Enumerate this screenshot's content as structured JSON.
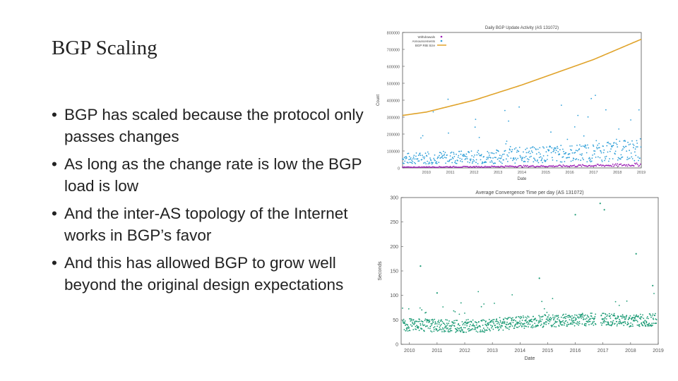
{
  "slide": {
    "title": "BGP Scaling",
    "bullets": [
      "BGP has scaled because the protocol only passes changes",
      "As long as the change rate is low the BGP load is low",
      "And the inter-AS topology of the Internet works in BGP’s favor",
      "And this has allowed BGP to grow well beyond the original  design expectations"
    ]
  },
  "chart_data": [
    {
      "type": "scatter",
      "title": "Daily BGP Update Activity (AS 131072)",
      "xlabel": "Date",
      "ylabel": "Count",
      "xlim": [
        2009,
        2019
      ],
      "ylim": [
        0,
        800000
      ],
      "x_ticks": [
        "2010",
        "2011",
        "2012",
        "2013",
        "2014",
        "2015",
        "2016",
        "2017",
        "2018",
        "2019"
      ],
      "y_ticks": [
        "0",
        "100000",
        "200000",
        "300000",
        "400000",
        "500000",
        "600000",
        "700000",
        "800000"
      ],
      "legend_position": "top-left",
      "grid": false,
      "series": [
        {
          "name": "Withdrawals",
          "color": "#9b1fb5",
          "style": "points",
          "x": [
            2009,
            2010,
            2011,
            2012,
            2013,
            2014,
            2015,
            2016,
            2017,
            2018,
            2019
          ],
          "y": [
            4000,
            5000,
            6000,
            6000,
            8000,
            10000,
            10000,
            12000,
            14000,
            16000,
            20000
          ]
        },
        {
          "name": "Announcements",
          "color": "#2f9fd8",
          "style": "points",
          "x": [
            2009,
            2010,
            2011,
            2012,
            2013,
            2014,
            2015,
            2016,
            2017,
            2018,
            2019
          ],
          "y": [
            60000,
            65000,
            70000,
            70000,
            75000,
            85000,
            90000,
            95000,
            100000,
            110000,
            120000
          ]
        },
        {
          "name": "BGP RIB Size",
          "color": "#e0a32a",
          "style": "line",
          "x": [
            2009,
            2010,
            2011,
            2012,
            2013,
            2014,
            2015,
            2016,
            2017,
            2018,
            2019
          ],
          "y": [
            310000,
            330000,
            365000,
            400000,
            445000,
            490000,
            540000,
            590000,
            640000,
            700000,
            760000
          ]
        }
      ]
    },
    {
      "type": "scatter",
      "title": "Average Convergence Time per day (AS 131072)",
      "xlabel": "Date",
      "ylabel": "Seconds",
      "xlim": [
        2009.7,
        2019
      ],
      "ylim": [
        0,
        300
      ],
      "x_ticks": [
        "2010",
        "2011",
        "2012",
        "2013",
        "2014",
        "2015",
        "2016",
        "2017",
        "2018",
        "2019"
      ],
      "y_ticks": [
        "0",
        "50",
        "100",
        "150",
        "200",
        "250",
        "300"
      ],
      "grid": false,
      "series": [
        {
          "color": "#1a9a74",
          "style": "points",
          "x": [
            2010,
            2011,
            2012,
            2013,
            2014,
            2015,
            2016,
            2017,
            2018,
            2019
          ],
          "y": [
            40,
            38,
            37,
            38,
            45,
            48,
            50,
            52,
            48,
            50
          ],
          "outliers": [
            [
              2016.9,
              288
            ],
            [
              2016.0,
              265
            ],
            [
              2017.05,
              275
            ],
            [
              2018.2,
              185
            ],
            [
              2011.0,
              105
            ],
            [
              2014.7,
              135
            ],
            [
              2018.8,
              120
            ],
            [
              2010.4,
              160
            ]
          ]
        }
      ]
    }
  ]
}
